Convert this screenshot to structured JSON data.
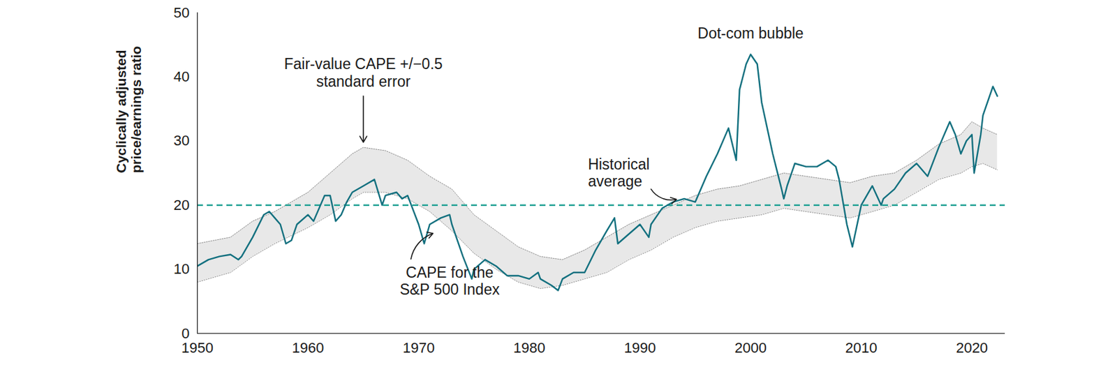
{
  "chart_data": {
    "type": "line",
    "y_label": [
      "Cyclically adjusted",
      "price/earnings ratio"
    ],
    "xlim": [
      1950,
      2023
    ],
    "xticks": [
      1950,
      1960,
      1970,
      1980,
      1990,
      2000,
      2010,
      2020
    ],
    "ylim": [
      0,
      50
    ],
    "yticks": [
      0,
      10,
      20,
      30,
      40,
      50
    ],
    "grid": false,
    "series": [
      {
        "label": [
          "CAPE for the",
          "S&P 500 Index"
        ],
        "color": "#12707f",
        "line_style": "solid",
        "x": [
          1950,
          1951,
          1952,
          1953,
          1953.7,
          1954,
          1955,
          1956,
          1956.5,
          1957,
          1957.5,
          1958,
          1958.5,
          1959,
          1960,
          1960.5,
          1961,
          1961.5,
          1962,
          1962.5,
          1963,
          1963.5,
          1964,
          1965,
          1966,
          1966.7,
          1967,
          1968,
          1968.5,
          1969,
          1970,
          1970.5,
          1971,
          1972,
          1972.8,
          1973,
          1974,
          1974.8,
          1975,
          1976,
          1977,
          1978,
          1979,
          1980,
          1980.8,
          1981,
          1982,
          1982.6,
          1983,
          1984,
          1985,
          1986,
          1987,
          1987.7,
          1988,
          1989,
          1990,
          1990.8,
          1991,
          1992,
          1993,
          1994,
          1995,
          1996,
          1997,
          1998,
          1998.7,
          1999,
          1999.6,
          2000,
          2000.6,
          2001,
          2002,
          2002.8,
          2003,
          2003.3,
          2004,
          2005,
          2006,
          2007,
          2007.7,
          2008,
          2008.7,
          2009.2,
          2010,
          2011,
          2011.8,
          2012,
          2013,
          2014,
          2015,
          2016,
          2017,
          2018,
          2018.5,
          2019,
          2019.5,
          2020,
          2020.2,
          2020.8,
          2021,
          2021.9,
          2022.3
        ],
        "values": [
          10.5,
          11.5,
          12,
          12.3,
          11.5,
          12,
          15,
          18.5,
          19,
          18,
          17,
          14,
          14.5,
          17,
          18.5,
          17.5,
          19.5,
          21.5,
          21.5,
          17.5,
          18.5,
          20.5,
          22,
          23,
          24,
          20,
          21.5,
          22,
          21,
          21.5,
          17,
          14,
          17,
          18,
          18.5,
          17,
          12,
          8.5,
          10,
          11.5,
          10.5,
          9,
          9,
          8.5,
          9.5,
          8.5,
          7.5,
          6.7,
          8.5,
          9.5,
          9.5,
          13,
          16,
          18,
          14,
          15.5,
          17,
          15,
          17,
          19.5,
          20.5,
          21,
          20.5,
          24.5,
          28,
          32,
          27,
          38,
          42,
          43.5,
          42,
          36,
          28,
          22.5,
          21,
          23,
          26.5,
          26,
          26,
          27,
          26,
          24,
          17,
          13.5,
          20,
          23,
          20,
          21,
          22.5,
          25,
          26.5,
          24.5,
          29,
          33,
          31,
          28,
          30,
          31,
          25,
          31,
          34,
          38.5,
          37
        ]
      }
    ],
    "band": {
      "label": [
        "Fair-value CAPE +/−0.5",
        "standard error"
      ],
      "color": "#e8e8e8",
      "x": [
        1950,
        1953,
        1955,
        1957,
        1960,
        1962,
        1964,
        1965,
        1967,
        1969,
        1971,
        1973,
        1975,
        1977,
        1979,
        1981,
        1983,
        1985,
        1987,
        1989,
        1991,
        1993,
        1995,
        1997,
        1999,
        2001,
        2003,
        2005,
        2007,
        2009,
        2011,
        2013,
        2015,
        2017,
        2019,
        2020,
        2021,
        2022.3
      ],
      "lower": [
        8,
        9.5,
        12,
        14,
        16.5,
        18.5,
        21,
        22,
        22,
        21,
        19,
        16,
        12.5,
        10,
        8,
        7,
        7.5,
        8.5,
        9.5,
        11.5,
        13,
        15,
        16.5,
        17.5,
        18,
        18.5,
        19.5,
        19,
        18.5,
        18,
        19,
        20,
        22,
        24,
        25,
        26,
        26.5,
        25.5
      ],
      "upper": [
        14,
        15,
        17.5,
        19,
        22,
        25,
        28,
        29,
        28.5,
        27,
        24.5,
        22.5,
        18.5,
        16,
        13.5,
        12,
        11.5,
        13,
        15,
        17,
        18.5,
        20,
        21.5,
        22.5,
        23,
        24,
        25,
        24.5,
        24,
        23.5,
        24.5,
        25,
        27,
        29.5,
        31,
        33,
        32,
        31
      ]
    },
    "historical_average": {
      "label": [
        "Historical",
        "average"
      ],
      "value": 20,
      "color": "#23a295",
      "line_style": "dashed"
    },
    "annotations": [
      {
        "text": "Dot-com bubble"
      }
    ]
  }
}
